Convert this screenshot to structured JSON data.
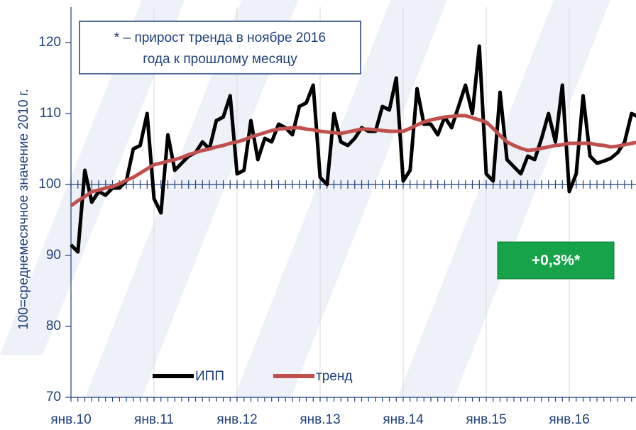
{
  "chart_data": {
    "type": "line",
    "ylabel": "100=среднемесячное значение 2010 г.",
    "note_lines": [
      "* – прирост тренда в ноябре 2016",
      "года к прошлому месяцу"
    ],
    "badge": "+0,3%*",
    "legend": "bottom",
    "grid": true,
    "ylim": [
      70,
      120
    ],
    "yticks": [
      70,
      80,
      90,
      100,
      110,
      120
    ],
    "categories": [
      "янв.10",
      null,
      null,
      null,
      null,
      null,
      null,
      null,
      null,
      null,
      null,
      null,
      "янв.11",
      null,
      null,
      null,
      null,
      null,
      null,
      null,
      null,
      null,
      null,
      null,
      "янв.12",
      null,
      null,
      null,
      null,
      null,
      null,
      null,
      null,
      null,
      null,
      null,
      "янв.13",
      null,
      null,
      null,
      null,
      null,
      null,
      null,
      null,
      null,
      null,
      null,
      "янв.14",
      null,
      null,
      null,
      null,
      null,
      null,
      null,
      null,
      null,
      null,
      null,
      "янв.15",
      null,
      null,
      null,
      null,
      null,
      null,
      null,
      null,
      null,
      null,
      null,
      "янв.16",
      null,
      null,
      null,
      null,
      null,
      null,
      null,
      null,
      null,
      null
    ],
    "series": [
      {
        "name": "ИПП",
        "color": "#000000",
        "values": [
          91.5,
          90.5,
          102,
          97.5,
          99,
          98.5,
          99.5,
          99.5,
          100.5,
          105,
          105.5,
          110,
          98,
          96,
          107,
          102,
          103,
          104,
          104.5,
          106,
          105,
          109,
          109.5,
          112.5,
          101.5,
          102,
          109,
          103.5,
          106.5,
          106,
          108.5,
          108,
          107,
          111,
          111.5,
          114,
          101,
          100,
          110,
          106,
          105.5,
          106.5,
          108,
          107.5,
          107.5,
          111,
          110.5,
          115,
          100.5,
          102,
          113.5,
          108.5,
          108.5,
          107,
          109.5,
          108,
          111,
          114,
          110,
          119.5,
          101.5,
          100.5,
          113,
          103.5,
          102.5,
          101.5,
          104,
          103.5,
          106.5,
          110,
          106,
          114,
          99,
          101.5,
          112.5,
          104,
          103,
          103.3,
          103.7,
          104.5,
          106,
          110,
          109.5
        ]
      },
      {
        "name": "тренд",
        "color": "#c0504d",
        "values": [
          97,
          97.7,
          98.3,
          99,
          99.2,
          99.5,
          99.7,
          100.1,
          100.6,
          101,
          101.6,
          102.2,
          102.8,
          103,
          103.3,
          103.5,
          103.8,
          104.2,
          104.5,
          104.8,
          105,
          105.3,
          105.5,
          105.8,
          106,
          106.3,
          106.7,
          107,
          107.3,
          107.6,
          107.8,
          107.9,
          108,
          108,
          107.8,
          107.7,
          107.5,
          107.4,
          107.3,
          107.2,
          107.4,
          107.6,
          107.8,
          107.8,
          107.7,
          107.6,
          107.5,
          107.5,
          107.5,
          107.9,
          108.4,
          108.8,
          109.1,
          109.3,
          109.5,
          109.6,
          109.7,
          109.7,
          109.4,
          109.1,
          108.8,
          107.9,
          106.9,
          106,
          105.5,
          105.1,
          104.8,
          104.9,
          105.1,
          105.3,
          105.5,
          105.6,
          105.8,
          105.8,
          105.8,
          105.8,
          105.6,
          105.5,
          105.3,
          105.4,
          105.6,
          105.8,
          106
        ]
      }
    ]
  }
}
